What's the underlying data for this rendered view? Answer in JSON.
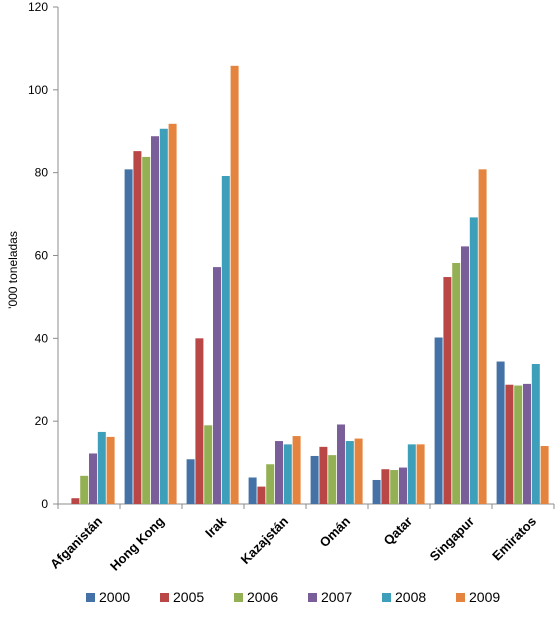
{
  "chart_data": {
    "type": "bar",
    "ylabel": "'000 toneladas",
    "xlabel": "",
    "ylim": [
      0,
      120
    ],
    "yticks": [
      0,
      20,
      40,
      60,
      80,
      100,
      120
    ],
    "grid": false,
    "legend_position": "bottom",
    "categories": [
      "Afganistán",
      "Hong Kong",
      "Irak",
      "Kazajstán",
      "Omán",
      "Qatar",
      "Singapur",
      "Emiratos"
    ],
    "series": [
      {
        "name": "2000",
        "color": "#4472A6",
        "values": [
          0,
          80.8,
          10.8,
          6.4,
          11.6,
          5.8,
          40.2,
          34.4
        ]
      },
      {
        "name": "2005",
        "color": "#B94746",
        "values": [
          1.4,
          85.2,
          40.0,
          4.2,
          13.8,
          8.4,
          54.8,
          28.8
        ]
      },
      {
        "name": "2006",
        "color": "#94B055",
        "values": [
          6.8,
          83.8,
          19.0,
          9.6,
          11.8,
          8.2,
          58.2,
          28.6
        ]
      },
      {
        "name": "2007",
        "color": "#7A5E9A",
        "values": [
          12.2,
          88.8,
          57.2,
          15.2,
          19.2,
          8.8,
          62.2,
          29.0
        ]
      },
      {
        "name": "2008",
        "color": "#3E9FBA",
        "values": [
          17.4,
          90.6,
          79.2,
          14.4,
          15.2,
          14.4,
          69.2,
          33.8
        ]
      },
      {
        "name": "2009",
        "color": "#E5843E",
        "values": [
          16.2,
          91.8,
          105.8,
          16.4,
          15.8,
          14.4,
          80.8,
          14.0
        ]
      }
    ]
  }
}
